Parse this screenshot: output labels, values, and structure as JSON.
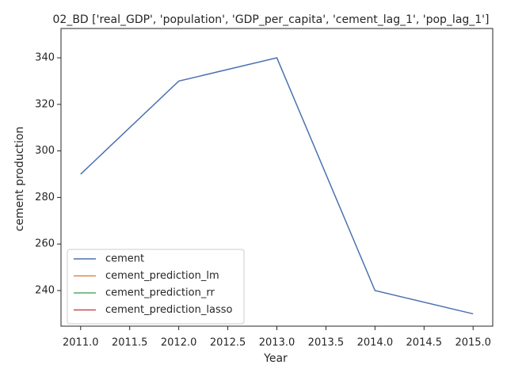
{
  "chart_data": {
    "type": "line",
    "title": "02_BD ['real_GDP', 'population', 'GDP_per_capita', 'cement_lag_1', 'pop_lag_1']",
    "xlabel": "Year",
    "ylabel": "cement production",
    "x": [
      2011,
      2012,
      2013,
      2014,
      2015
    ],
    "series": [
      {
        "name": "cement",
        "color": "#4c72b0",
        "values": [
          290,
          330,
          340,
          240,
          230
        ]
      },
      {
        "name": "cement_prediction_lm",
        "color": "#dd8452",
        "values": [
          null,
          null,
          null,
          null,
          null
        ]
      },
      {
        "name": "cement_prediction_rr",
        "color": "#55a868",
        "values": [
          null,
          null,
          null,
          null,
          null
        ]
      },
      {
        "name": "cement_prediction_lasso",
        "color": "#c44e52",
        "values": [
          null,
          null,
          null,
          null,
          null
        ]
      }
    ],
    "xlim": [
      2010.8,
      2015.2
    ],
    "xticks": [
      {
        "value": 2011,
        "label": "2011.0"
      },
      {
        "value": 2011.5,
        "label": "2011.5"
      },
      {
        "value": 2012,
        "label": "2012.0"
      },
      {
        "value": 2012.5,
        "label": "2012.5"
      },
      {
        "value": 2013,
        "label": "2013.0"
      },
      {
        "value": 2013.5,
        "label": "2013.5"
      },
      {
        "value": 2014,
        "label": "2014.0"
      },
      {
        "value": 2014.5,
        "label": "2014.5"
      },
      {
        "value": 2015,
        "label": "2015.0"
      }
    ],
    "ylim": [
      224.7,
      352.6
    ],
    "yticks": [
      240,
      260,
      280,
      300,
      320,
      340
    ],
    "grid": false,
    "legend": "lower left"
  }
}
